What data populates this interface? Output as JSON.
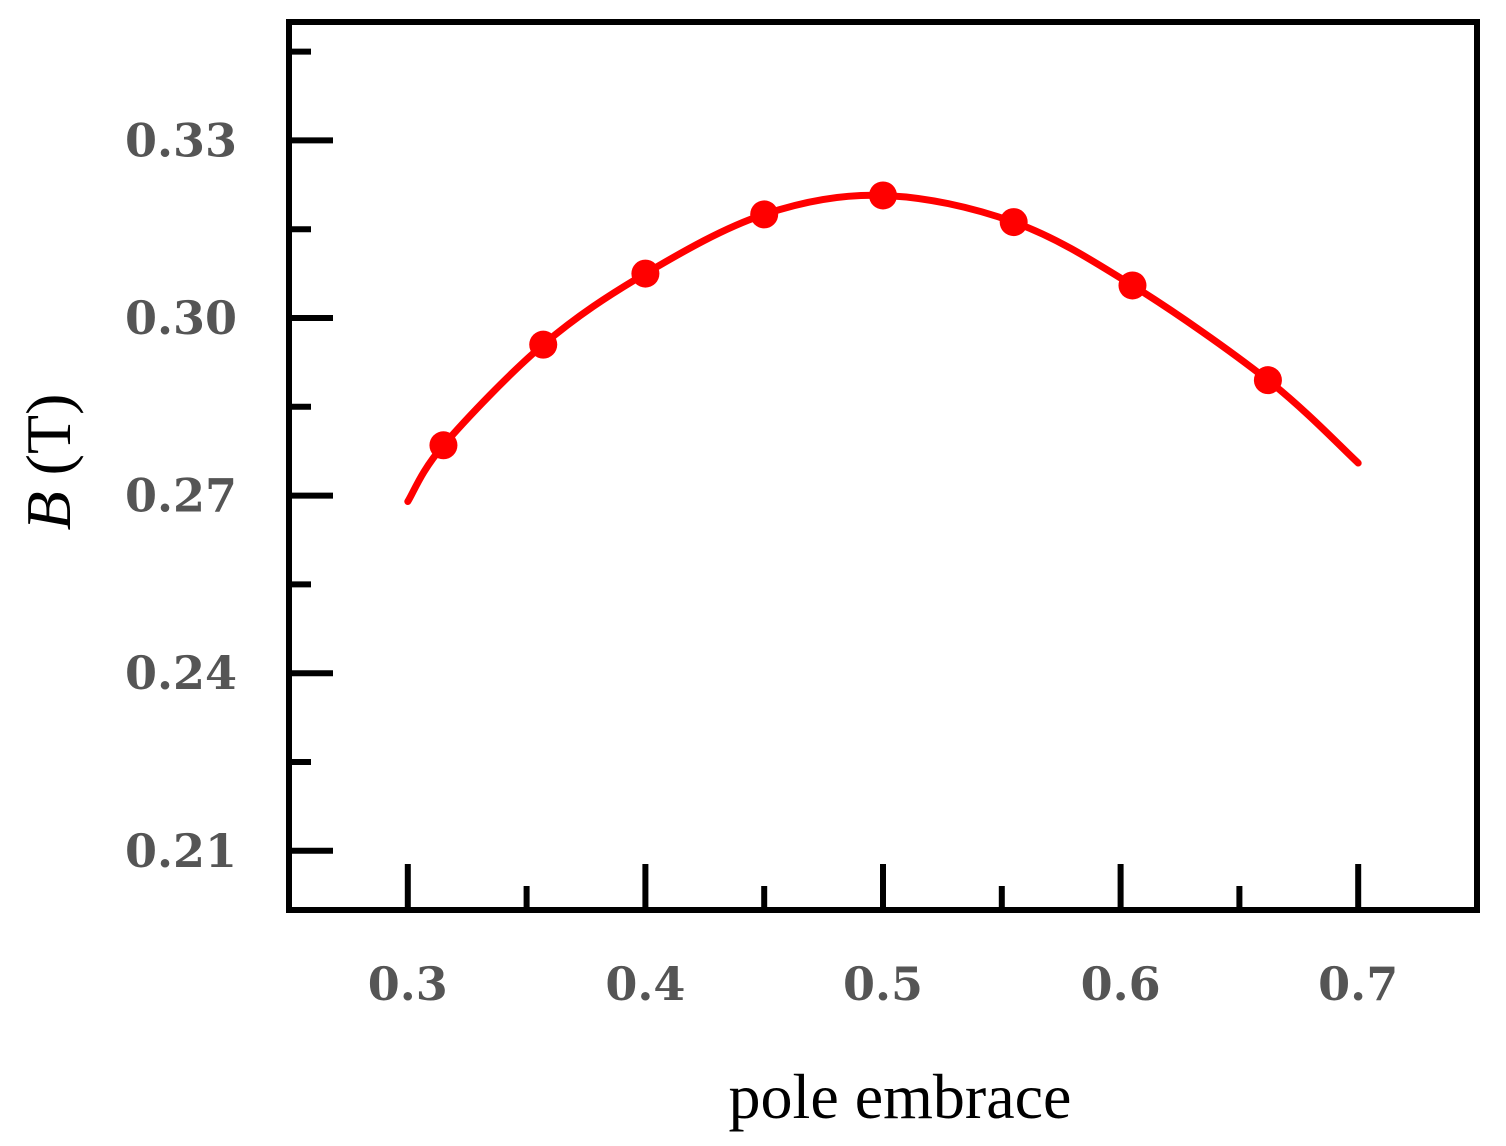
{
  "chart_data": {
    "type": "line",
    "title": "",
    "xlabel": "pole embrace",
    "ylabel_italic": "B",
    "ylabel_unit": " (T)",
    "xlim": [
      0.25,
      0.75
    ],
    "ylim": [
      0.2,
      0.35
    ],
    "x_ticks": [
      {
        "value": 0.3,
        "label": "0.3"
      },
      {
        "value": 0.4,
        "label": "0.4"
      },
      {
        "value": 0.5,
        "label": "0.5"
      },
      {
        "value": 0.6,
        "label": "0.6"
      },
      {
        "value": 0.7,
        "label": "0.7"
      }
    ],
    "x_minor_ticks": [
      0.35,
      0.45,
      0.55,
      0.65
    ],
    "y_ticks": [
      {
        "value": 0.21,
        "label": "0.21"
      },
      {
        "value": 0.24,
        "label": "0.24"
      },
      {
        "value": 0.27,
        "label": "0.27"
      },
      {
        "value": 0.3,
        "label": "0.30"
      },
      {
        "value": 0.33,
        "label": "0.33"
      }
    ],
    "y_minor_ticks": [
      0.225,
      0.255,
      0.285,
      0.315,
      0.345
    ],
    "grid": false,
    "legend": "none",
    "series": [
      {
        "color": "#ff0000",
        "x": [
          0.3,
          0.315,
          0.357,
          0.4,
          0.45,
          0.5,
          0.555,
          0.605,
          0.662,
          0.7
        ],
        "y": [
          0.269,
          0.2785,
          0.2955,
          0.3075,
          0.3175,
          0.3207,
          0.3162,
          0.3055,
          0.2895,
          0.2755
        ],
        "markers": [
          false,
          true,
          true,
          true,
          true,
          true,
          true,
          true,
          true,
          false
        ]
      }
    ]
  }
}
